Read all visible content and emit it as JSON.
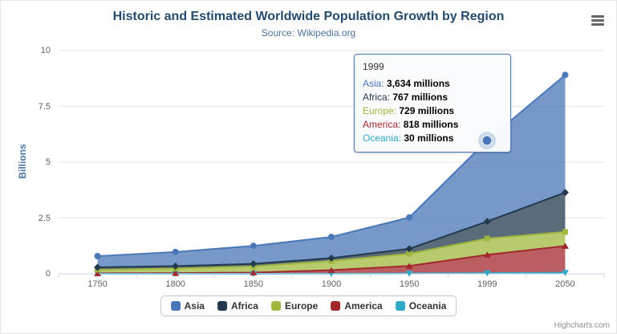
{
  "header": {
    "title": "Historic and Estimated Worldwide Population Growth by Region",
    "subtitle": "Source: Wikipedia.org"
  },
  "chart_data": {
    "type": "area",
    "stacking": "normal",
    "title": "Historic and Estimated Worldwide Population Growth by Region",
    "subtitle": "Source: Wikipedia.org",
    "categories": [
      "1750",
      "1800",
      "1850",
      "1900",
      "1950",
      "1999",
      "2050"
    ],
    "series": [
      {
        "name": "Asia",
        "color": "#4a77b8",
        "marker": "circle",
        "values": [
          502,
          635,
          809,
          947,
          1402,
          3634,
          5268
        ]
      },
      {
        "name": "Africa",
        "color": "#23394e",
        "marker": "diamond",
        "values": [
          106,
          107,
          111,
          133,
          221,
          767,
          1766
        ]
      },
      {
        "name": "Europe",
        "color": "#9fb83d",
        "marker": "square",
        "values": [
          163,
          203,
          276,
          408,
          547,
          729,
          628
        ]
      },
      {
        "name": "America",
        "color": "#a3282e",
        "marker": "triangle",
        "values": [
          18,
          31,
          54,
          156,
          339,
          818,
          1201
        ]
      },
      {
        "name": "Oceania",
        "color": "#2fa9c5",
        "marker": "triangle-down",
        "values": [
          2,
          2,
          2,
          6,
          13,
          30,
          46
        ]
      }
    ],
    "units": "millions",
    "xlabel": "",
    "ylabel": "Billions",
    "ylim": [
      0,
      10
    ],
    "y_ticks": [
      "0",
      "2.5",
      "5",
      "7.5",
      "10"
    ],
    "grid": true,
    "legend_position": "bottom",
    "hover": {
      "category": "1999",
      "series": "Asia"
    }
  },
  "tooltip": {
    "header": "1999",
    "rows": [
      {
        "label": "Asia",
        "value": "3,634 millions"
      },
      {
        "label": "Africa",
        "value": "767 millions"
      },
      {
        "label": "Europe",
        "value": "729 millions"
      },
      {
        "label": "America",
        "value": "818 millions"
      },
      {
        "label": "Oceania",
        "value": "30 millions"
      }
    ]
  },
  "credits": {
    "label": "Highcharts.com"
  }
}
